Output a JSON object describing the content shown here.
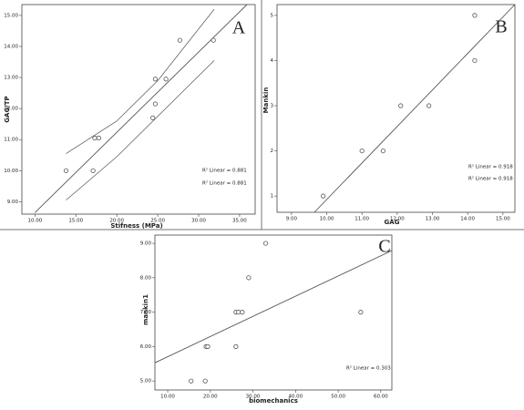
{
  "chart_data": [
    {
      "type": "scatter",
      "label": "A",
      "x_label": "Stifness (MPa)",
      "y_label": "GAG/TP",
      "x": [
        13.8,
        17.1,
        17.3,
        17.8,
        24.4,
        24.7,
        24.7,
        26.0,
        27.7,
        31.8
      ],
      "values": [
        10.0,
        10.0,
        11.05,
        11.05,
        11.7,
        12.15,
        12.95,
        12.95,
        14.2,
        14.2
      ],
      "color": "#555555",
      "fit": {
        "x": [
          10.0,
          35.9
        ],
        "y": [
          8.65,
          15.35
        ]
      },
      "ci_upper": {
        "x": [
          13.8,
          20.0,
          25.0,
          31.9
        ],
        "y": [
          10.55,
          11.6,
          12.9,
          15.2
        ]
      },
      "ci_lower": {
        "x": [
          13.8,
          20.0,
          25.0,
          31.9
        ],
        "y": [
          9.05,
          10.45,
          11.75,
          13.55
        ]
      },
      "annotations": [
        "R² Linear = 0.881",
        "R² Linear = 0.881"
      ],
      "xlim": [
        8.4,
        36.9
      ],
      "xticks": [
        {
          "value": 10,
          "label": "10.00"
        },
        {
          "value": 15,
          "label": "15.00"
        },
        {
          "value": 20,
          "label": "20.00"
        },
        {
          "value": 25,
          "label": "25.00"
        },
        {
          "value": 30,
          "label": "30.00"
        },
        {
          "value": 35,
          "label": "35.00"
        }
      ],
      "ylim": [
        8.6,
        15.35
      ],
      "yticks": [
        {
          "value": 9,
          "label": "9.00"
        },
        {
          "value": 10,
          "label": "10.00"
        },
        {
          "value": 11,
          "label": "11.00"
        },
        {
          "value": 12,
          "label": "12.00"
        },
        {
          "value": 13,
          "label": "13.00"
        },
        {
          "value": 14,
          "label": "14.00"
        },
        {
          "value": 15,
          "label": "15.00"
        }
      ]
    },
    {
      "type": "scatter",
      "label": "B",
      "x_label": "GAG",
      "y_label": "Mankin",
      "x": [
        9.9,
        11.0,
        11.6,
        12.1,
        12.9,
        14.2,
        14.2
      ],
      "values": [
        1,
        2,
        2,
        3,
        3,
        4,
        5
      ],
      "color": "#555555",
      "fit": {
        "x": [
          9.65,
          15.34
        ],
        "y": [
          0.64,
          5.24
        ]
      },
      "annotations": [
        "R² Linear = 0.918",
        "R² Linear = 0.918"
      ],
      "xlim": [
        8.59,
        15.34
      ],
      "xticks": [
        {
          "value": 9,
          "label": "9.00"
        },
        {
          "value": 10,
          "label": "10.00"
        },
        {
          "value": 11,
          "label": "11.00"
        },
        {
          "value": 12,
          "label": "12.00"
        },
        {
          "value": 13,
          "label": "13.00"
        },
        {
          "value": 14,
          "label": "14.00"
        },
        {
          "value": 15,
          "label": "15.00"
        }
      ],
      "ylim": [
        0.64,
        5.24
      ],
      "yticks": [
        1,
        2,
        3,
        4,
        5
      ]
    },
    {
      "type": "scatter",
      "label": "C",
      "x_label": "biomechanics",
      "y_label": "mankin1",
      "x": [
        15.5,
        18.8,
        19.0,
        19.4,
        26.0,
        26.0,
        26.6,
        27.5,
        29.0,
        33.0,
        55.3
      ],
      "values": [
        5,
        5,
        6,
        6,
        6,
        7,
        7,
        7,
        8,
        9,
        7
      ],
      "color": "#555555",
      "fit": {
        "x": [
          7.0,
          62.6
        ],
        "y": [
          5.53,
          8.79
        ]
      },
      "annotations": [
        "R² Linear = 0.303"
      ],
      "xlim": [
        7.0,
        62.6
      ],
      "xticks": [
        {
          "value": 10,
          "label": "10.00"
        },
        {
          "value": 20,
          "label": "20.00"
        },
        {
          "value": 30,
          "label": "30.00"
        },
        {
          "value": 40,
          "label": "40.00"
        },
        {
          "value": 50,
          "label": "50.00"
        },
        {
          "value": 60,
          "label": "60.00"
        }
      ],
      "ylim": [
        4.74,
        9.24
      ],
      "yticks": [
        {
          "value": 5,
          "label": "5.00"
        },
        {
          "value": 6,
          "label": "6.00"
        },
        {
          "value": 7,
          "label": "7.00"
        },
        {
          "value": 8,
          "label": "8.00"
        },
        {
          "value": 9,
          "label": "9.00"
        }
      ]
    }
  ]
}
